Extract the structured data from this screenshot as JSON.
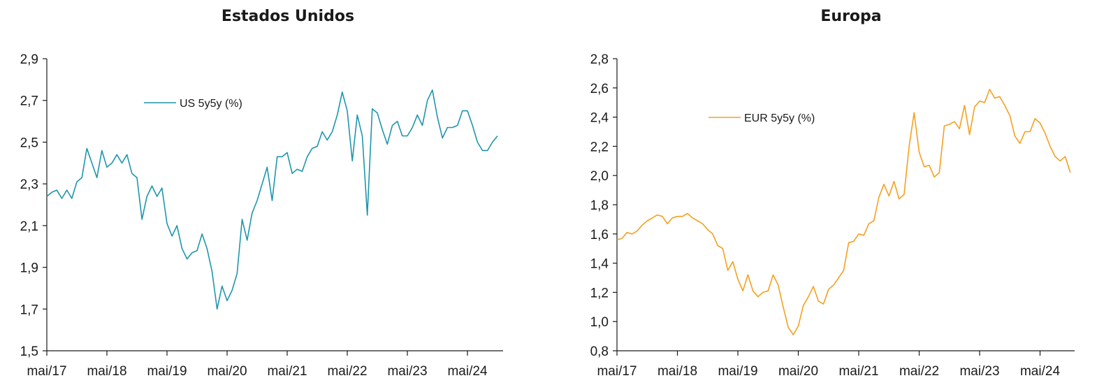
{
  "chart_data": [
    {
      "type": "line",
      "title": "Estados Unidos",
      "xlabel": "",
      "ylabel": "",
      "ylim": [
        1.5,
        2.9
      ],
      "yticks": [
        "1,5",
        "1,7",
        "1,9",
        "2,1",
        "2,3",
        "2,5",
        "2,7",
        "2,9"
      ],
      "xticks": [
        "mai/17",
        "mai/18",
        "mai/19",
        "mai/20",
        "mai/21",
        "mai/22",
        "mai/23",
        "mai/24"
      ],
      "legend_position": "top-left",
      "grid": false,
      "series": [
        {
          "name": "US 5y5y (%)",
          "color": "#1e96ab",
          "x": [
            "2017-05",
            "2017-06",
            "2017-07",
            "2017-08",
            "2017-09",
            "2017-10",
            "2017-11",
            "2017-12",
            "2018-01",
            "2018-02",
            "2018-03",
            "2018-04",
            "2018-05",
            "2018-06",
            "2018-07",
            "2018-08",
            "2018-09",
            "2018-10",
            "2018-11",
            "2018-12",
            "2019-01",
            "2019-02",
            "2019-03",
            "2019-04",
            "2019-05",
            "2019-06",
            "2019-07",
            "2019-08",
            "2019-09",
            "2019-10",
            "2019-11",
            "2019-12",
            "2020-01",
            "2020-02",
            "2020-03",
            "2020-04",
            "2020-05",
            "2020-06",
            "2020-07",
            "2020-08",
            "2020-09",
            "2020-10",
            "2020-11",
            "2020-12",
            "2021-01",
            "2021-02",
            "2021-03",
            "2021-04",
            "2021-05",
            "2021-06",
            "2021-07",
            "2021-08",
            "2021-09",
            "2021-10",
            "2021-11",
            "2021-12",
            "2022-01",
            "2022-02",
            "2022-03",
            "2022-04",
            "2022-05",
            "2022-06",
            "2022-07",
            "2022-08",
            "2022-09",
            "2022-10",
            "2022-11",
            "2022-12",
            "2023-01",
            "2023-02",
            "2023-03",
            "2023-04",
            "2023-05",
            "2023-06",
            "2023-07",
            "2023-08",
            "2023-09",
            "2023-10",
            "2023-11",
            "2023-12",
            "2024-01",
            "2024-02",
            "2024-03",
            "2024-04",
            "2024-05",
            "2024-06",
            "2024-07",
            "2024-08",
            "2024-09",
            "2024-10",
            "2024-11"
          ],
          "values": [
            2.24,
            2.26,
            2.27,
            2.23,
            2.27,
            2.23,
            2.31,
            2.33,
            2.47,
            2.4,
            2.33,
            2.46,
            2.38,
            2.4,
            2.44,
            2.4,
            2.44,
            2.35,
            2.33,
            2.13,
            2.24,
            2.29,
            2.24,
            2.28,
            2.11,
            2.05,
            2.1,
            1.99,
            1.94,
            1.97,
            1.98,
            2.06,
            1.99,
            1.88,
            1.7,
            1.81,
            1.74,
            1.79,
            1.87,
            2.13,
            2.03,
            2.16,
            2.22,
            2.3,
            2.38,
            2.22,
            2.43,
            2.43,
            2.45,
            2.35,
            2.37,
            2.36,
            2.43,
            2.47,
            2.48,
            2.55,
            2.51,
            2.55,
            2.63,
            2.74,
            2.65,
            2.41,
            2.63,
            2.53,
            2.15,
            2.66,
            2.64,
            2.56,
            2.49,
            2.58,
            2.6,
            2.53,
            2.53,
            2.57,
            2.63,
            2.58,
            2.7,
            2.75,
            2.62,
            2.52,
            2.57,
            2.57,
            2.58,
            2.65,
            2.65,
            2.58,
            2.5,
            2.46,
            2.46,
            2.5,
            2.53
          ]
        }
      ]
    },
    {
      "type": "line",
      "title": "Europa",
      "xlabel": "",
      "ylabel": "",
      "ylim": [
        0.8,
        2.8
      ],
      "yticks": [
        "0,8",
        "1,0",
        "1,2",
        "1,4",
        "1,6",
        "1,8",
        "2,0",
        "2,2",
        "2,4",
        "2,6",
        "2,8"
      ],
      "xticks": [
        "mai/17",
        "mai/18",
        "mai/19",
        "mai/20",
        "mai/21",
        "mai/22",
        "mai/23",
        "mai/24"
      ],
      "legend_position": "top-left",
      "grid": false,
      "series": [
        {
          "name": "EUR 5y5y (%)",
          "color": "#f5a01f",
          "x": [
            "2017-05",
            "2017-06",
            "2017-07",
            "2017-08",
            "2017-09",
            "2017-10",
            "2017-11",
            "2017-12",
            "2018-01",
            "2018-02",
            "2018-03",
            "2018-04",
            "2018-05",
            "2018-06",
            "2018-07",
            "2018-08",
            "2018-09",
            "2018-10",
            "2018-11",
            "2018-12",
            "2019-01",
            "2019-02",
            "2019-03",
            "2019-04",
            "2019-05",
            "2019-06",
            "2019-07",
            "2019-08",
            "2019-09",
            "2019-10",
            "2019-11",
            "2019-12",
            "2020-01",
            "2020-02",
            "2020-03",
            "2020-04",
            "2020-05",
            "2020-06",
            "2020-07",
            "2020-08",
            "2020-09",
            "2020-10",
            "2020-11",
            "2020-12",
            "2021-01",
            "2021-02",
            "2021-03",
            "2021-04",
            "2021-05",
            "2021-06",
            "2021-07",
            "2021-08",
            "2021-09",
            "2021-10",
            "2021-11",
            "2021-12",
            "2022-01",
            "2022-02",
            "2022-03",
            "2022-04",
            "2022-05",
            "2022-06",
            "2022-07",
            "2022-08",
            "2022-09",
            "2022-10",
            "2022-11",
            "2022-12",
            "2023-01",
            "2023-02",
            "2023-03",
            "2023-04",
            "2023-05",
            "2023-06",
            "2023-07",
            "2023-08",
            "2023-09",
            "2023-10",
            "2023-11",
            "2023-12",
            "2024-01",
            "2024-02",
            "2024-03",
            "2024-04",
            "2024-05",
            "2024-06",
            "2024-07",
            "2024-08",
            "2024-09",
            "2024-10",
            "2024-11"
          ],
          "values": [
            1.56,
            1.57,
            1.61,
            1.6,
            1.62,
            1.66,
            1.69,
            1.71,
            1.73,
            1.72,
            1.67,
            1.71,
            1.72,
            1.72,
            1.74,
            1.71,
            1.69,
            1.67,
            1.63,
            1.6,
            1.52,
            1.5,
            1.35,
            1.41,
            1.29,
            1.21,
            1.32,
            1.21,
            1.17,
            1.2,
            1.21,
            1.32,
            1.25,
            1.1,
            0.96,
            0.91,
            0.97,
            1.11,
            1.17,
            1.24,
            1.14,
            1.12,
            1.22,
            1.25,
            1.3,
            1.35,
            1.54,
            1.55,
            1.6,
            1.59,
            1.67,
            1.69,
            1.85,
            1.94,
            1.86,
            1.96,
            1.84,
            1.87,
            2.2,
            2.43,
            2.16,
            2.06,
            2.07,
            1.99,
            2.02,
            2.34,
            2.35,
            2.37,
            2.32,
            2.48,
            2.28,
            2.47,
            2.51,
            2.5,
            2.59,
            2.53,
            2.54,
            2.48,
            2.41,
            2.27,
            2.22,
            2.3,
            2.3,
            2.39,
            2.36,
            2.29,
            2.2,
            2.13,
            2.1,
            2.13,
            2.02
          ]
        }
      ]
    }
  ]
}
